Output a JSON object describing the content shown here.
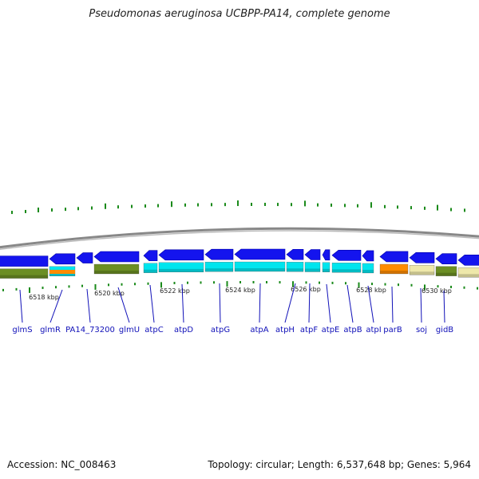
{
  "title": "Pseudomonas aeruginosa UCBPP-PA14, complete genome",
  "footer": {
    "accession": "Accession: NC_008463",
    "summary": "Topology: circular; Length: 6,537,648 bp; Genes: 5,964"
  },
  "colors": {
    "forward_gene": "#1414ee",
    "cog_olive": "#6b8e23",
    "cog_cyan": "#00e5ee",
    "cog_orange": "#ff8c00",
    "cog_khaki": "#eee8aa",
    "label": "#1010b8",
    "tick": "#1a8a1a",
    "backbone": "#888888"
  },
  "position_ticks": [
    {
      "label": "6518 kbp"
    },
    {
      "label": "6520 kbp"
    },
    {
      "label": "6522 kbp"
    },
    {
      "label": "6524 kbp"
    },
    {
      "label": "6526 kbp"
    },
    {
      "label": "6528 kbp"
    },
    {
      "label": "6530 kbp"
    }
  ],
  "genes": [
    {
      "name": "glmS"
    },
    {
      "name": "glmR"
    },
    {
      "name": "PA14_73200"
    },
    {
      "name": "glmU"
    },
    {
      "name": "atpC"
    },
    {
      "name": "atpD"
    },
    {
      "name": "atpG"
    },
    {
      "name": "atpA"
    },
    {
      "name": "atpH"
    },
    {
      "name": "atpF"
    },
    {
      "name": "atpE"
    },
    {
      "name": "atpB"
    },
    {
      "name": "atpI"
    },
    {
      "name": "parB"
    },
    {
      "name": "soj"
    },
    {
      "name": "gidB"
    }
  ]
}
